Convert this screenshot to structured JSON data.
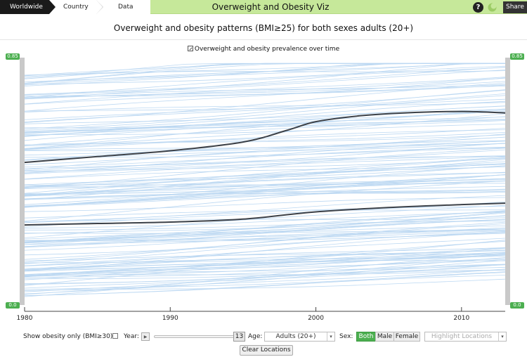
{
  "breadcrumbs": [
    {
      "label": "Worldwide",
      "active": true
    },
    {
      "label": "Country",
      "active": false
    },
    {
      "label": "Data",
      "active": false
    }
  ],
  "header": {
    "title": "Overweight and Obesity Viz",
    "help_icon": "help-icon",
    "help_glyph": "?",
    "theme_icon": "leaf-icon",
    "share_label": "Share",
    "bar_color": "#c6e89a"
  },
  "chart_heading": "Overweight and obesity patterns (BMI≥25) for both sexes adults (20+)",
  "chart_subtitle": "Overweight and obesity prevalence over time",
  "chart_data": {
    "type": "line",
    "title": "Overweight and obesity patterns (BMI≥25) for both sexes adults (20+)",
    "subtitle": "Overweight and obesity prevalence over time",
    "xlim": [
      1980,
      2013
    ],
    "ylim": [
      0,
      0.85
    ],
    "xticks": [
      1980,
      1990,
      2000,
      2010
    ],
    "y_range_labels": {
      "top": "0.85",
      "bottom": "0.0"
    },
    "grid": false,
    "background_series": {
      "count": 160,
      "color": "#bcd8f2",
      "description_free": true
    },
    "series": [
      {
        "color": "#3c4148",
        "x": [
          1980,
          1985,
          1990,
          1995,
          1998,
          2000,
          2003,
          2006,
          2010,
          2013
        ],
        "y": [
          0.49,
          0.51,
          0.53,
          0.56,
          0.6,
          0.63,
          0.65,
          0.66,
          0.665,
          0.66
        ]
      },
      {
        "color": "#3c4148",
        "x": [
          1980,
          1985,
          1990,
          1995,
          2000,
          2005,
          2010,
          2013
        ],
        "y": [
          0.275,
          0.28,
          0.285,
          0.295,
          0.32,
          0.335,
          0.345,
          0.35
        ]
      }
    ],
    "accent": "#4caf50"
  },
  "controls": {
    "obesity_only_label": "Show obesity only (BMI≥30):",
    "obesity_only_checked": false,
    "year_label": "Year:",
    "play_glyph": "▶",
    "year_handle": "13",
    "year_progress": 1.0,
    "age_label": "Age:",
    "age_value": "Adults (20+)",
    "sex_label": "Sex:",
    "sex_options": [
      {
        "label": "Both",
        "selected": true
      },
      {
        "label": "Male",
        "selected": false
      },
      {
        "label": "Female",
        "selected": false
      }
    ],
    "highlight_placeholder": "Highlight Locations",
    "caret_glyph": "▾",
    "clear_label": "Clear Locations"
  }
}
